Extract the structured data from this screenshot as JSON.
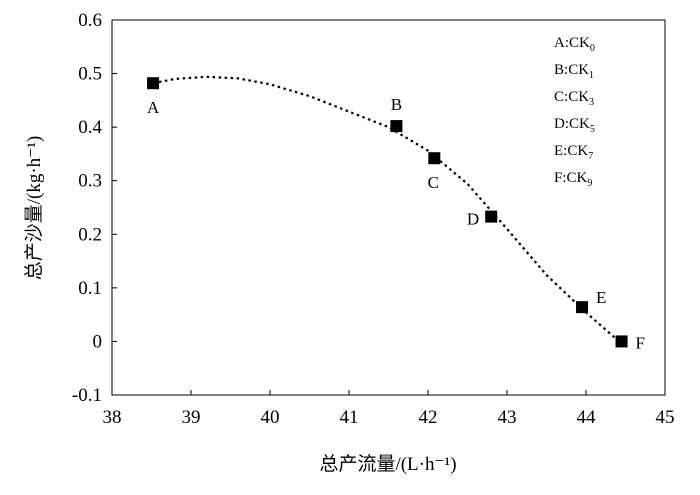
{
  "chart_data": {
    "type": "scatter",
    "xlabel": "总产流量/(L·h⁻¹)",
    "ylabel": "总产沙量/(kg·h⁻¹)",
    "xlim": [
      38,
      45
    ],
    "ylim": [
      -0.1,
      0.6
    ],
    "xticks": [
      "38",
      "39",
      "40",
      "41",
      "42",
      "43",
      "44",
      "45"
    ],
    "yticks": [
      "-0.1",
      "0",
      "0.1",
      "0.2",
      "0.3",
      "0.4",
      "0.5",
      "0.6"
    ],
    "points": [
      {
        "label": "A",
        "x": 38.52,
        "y": 0.482
      },
      {
        "label": "B",
        "x": 41.6,
        "y": 0.402
      },
      {
        "label": "C",
        "x": 42.08,
        "y": 0.342
      },
      {
        "label": "D",
        "x": 42.8,
        "y": 0.233
      },
      {
        "label": "E",
        "x": 43.95,
        "y": 0.064
      },
      {
        "label": "F",
        "x": 44.45,
        "y": 0.0
      }
    ],
    "trendline": {
      "style": "dotted",
      "curve": [
        [
          38.52,
          0.482
        ],
        [
          38.8,
          0.49
        ],
        [
          39.2,
          0.494
        ],
        [
          39.6,
          0.491
        ],
        [
          40.0,
          0.48
        ],
        [
          40.5,
          0.458
        ],
        [
          41.0,
          0.429
        ],
        [
          41.5,
          0.4
        ],
        [
          42.0,
          0.356
        ],
        [
          42.5,
          0.294
        ],
        [
          43.0,
          0.21
        ],
        [
          43.5,
          0.124
        ],
        [
          44.0,
          0.054
        ],
        [
          44.45,
          -0.004
        ]
      ]
    },
    "legend": {
      "placement": "top-right",
      "entries": [
        {
          "key": "A",
          "name": "CK",
          "sub": "0"
        },
        {
          "key": "B",
          "name": "CK",
          "sub": "1"
        },
        {
          "key": "C",
          "name": "CK",
          "sub": "3"
        },
        {
          "key": "D",
          "name": "CK",
          "sub": "5"
        },
        {
          "key": "E",
          "name": "CK",
          "sub": "7"
        },
        {
          "key": "F",
          "name": "CK",
          "sub": "9"
        }
      ]
    }
  }
}
